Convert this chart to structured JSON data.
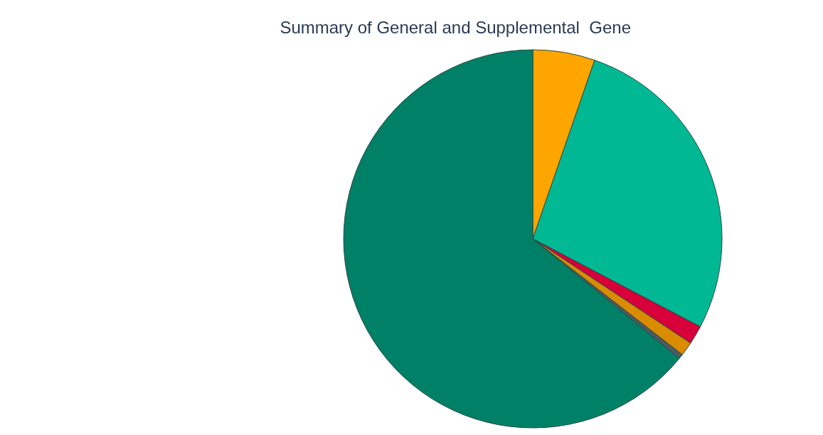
{
  "chart_data": {
    "type": "pie",
    "title": "Summary of General and Supplemental  Gene",
    "categories": [
      null,
      null,
      null,
      null,
      null,
      null
    ],
    "values": [
      5.3,
      27.4,
      1.6,
      1.2,
      0.4,
      64.1
    ],
    "colors": [
      "#ffa500",
      "#00b894",
      "#d7003a",
      "#d98c00",
      "#4d5a5f",
      "#008066"
    ],
    "legend": false
  }
}
